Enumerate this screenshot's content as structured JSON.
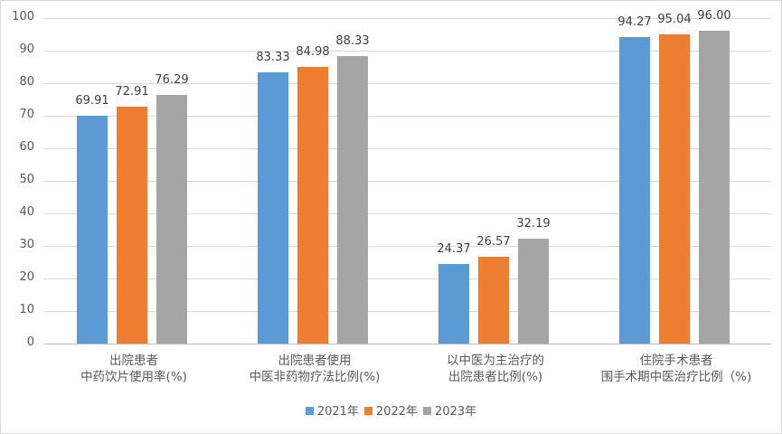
{
  "chart_data": {
    "type": "bar",
    "title": "",
    "xlabel": "",
    "ylabel": "",
    "ylim": [
      0,
      100
    ],
    "yticks": [
      0,
      10,
      20,
      30,
      40,
      50,
      60,
      70,
      80,
      90,
      100
    ],
    "grid": true,
    "legend_position": "bottom",
    "categories": [
      [
        "出院患者",
        "中药饮片使用率(%)"
      ],
      [
        "出院患者使用",
        "中医非药物疗法比例(%)"
      ],
      [
        "以中医为主治疗的",
        "出院患者比例(%)"
      ],
      [
        "住院手术患者",
        "围手术期中医治疗比例（%)"
      ]
    ],
    "series": [
      {
        "name": "2021年",
        "color": "#5b9bd5",
        "values": [
          69.91,
          83.33,
          24.37,
          94.27
        ],
        "labels": [
          "69.91",
          "83.33",
          "24.37",
          "94.27"
        ]
      },
      {
        "name": "2022年",
        "color": "#ed7d31",
        "values": [
          72.91,
          84.98,
          26.57,
          95.04
        ],
        "labels": [
          "72.91",
          "84.98",
          "26.57",
          "95.04"
        ]
      },
      {
        "name": "2023年",
        "color": "#a5a5a5",
        "values": [
          76.29,
          88.33,
          32.19,
          96.0
        ],
        "labels": [
          "76.29",
          "88.33",
          "32.19",
          "96.00"
        ]
      }
    ]
  }
}
